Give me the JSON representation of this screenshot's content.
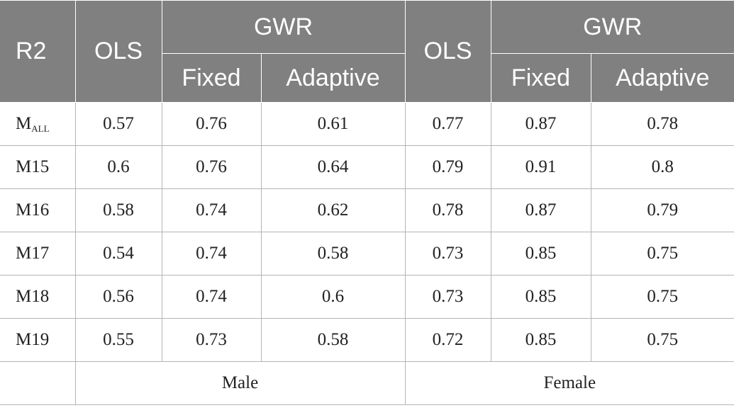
{
  "header": {
    "r2": "R2",
    "ols_male": "OLS",
    "gwr_male": "GWR",
    "ols_female": "OLS",
    "gwr_female": "GWR",
    "fixed_male": "Fixed",
    "adaptive_male": "Adaptive",
    "fixed_female": "Fixed",
    "adaptive_female": "Adaptive"
  },
  "rows": [
    {
      "label": "M",
      "label_sub": "ALL",
      "values": [
        "0.57",
        "0.76",
        "0.61",
        "0.77",
        "0.87",
        "0.78"
      ]
    },
    {
      "label": "M15",
      "label_sub": "",
      "values": [
        "0.6",
        "0.76",
        "0.64",
        "0.79",
        "0.91",
        "0.8"
      ]
    },
    {
      "label": "M16",
      "label_sub": "",
      "values": [
        "0.58",
        "0.74",
        "0.62",
        "0.78",
        "0.87",
        "0.79"
      ]
    },
    {
      "label": "M17",
      "label_sub": "",
      "values": [
        "0.54",
        "0.74",
        "0.58",
        "0.73",
        "0.85",
        "0.75"
      ]
    },
    {
      "label": "M18",
      "label_sub": "",
      "values": [
        "0.56",
        "0.74",
        "0.6",
        "0.73",
        "0.85",
        "0.75"
      ]
    },
    {
      "label": "M19",
      "label_sub": "",
      "values": [
        "0.55",
        "0.73",
        "0.58",
        "0.72",
        "0.85",
        "0.75"
      ]
    }
  ],
  "footer": {
    "male": "Male",
    "female": "Female"
  }
}
